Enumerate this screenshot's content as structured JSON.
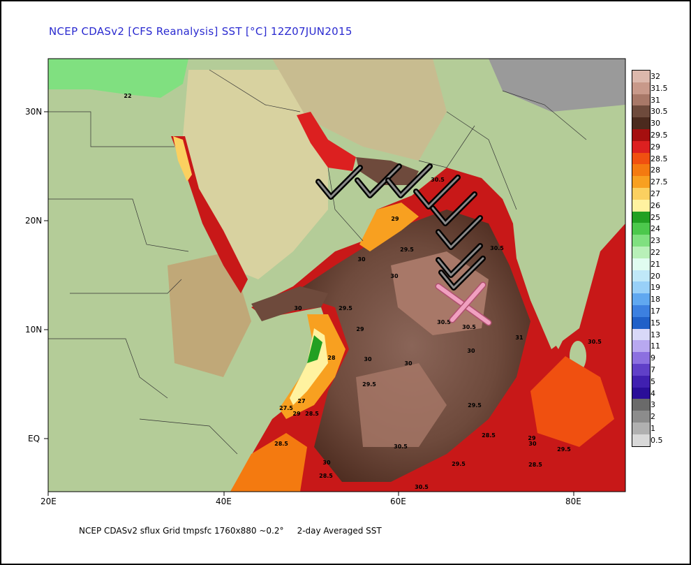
{
  "title": "NCEP CDASv2 [CFS Reanalysis] SST [°C] 12Z07JUN2015",
  "footer": "NCEP CDASv2 sflux Grid tmpsfc 1760x880 ~0.2°     2-day Averaged SST",
  "axes": {
    "x_ticks": [
      "20E",
      "40E",
      "60E",
      "80E"
    ],
    "y_ticks": [
      "30N",
      "20N",
      "10N",
      "EQ"
    ]
  },
  "legend": {
    "labels": [
      "32",
      "31.5",
      "31",
      "30.5",
      "30",
      "29.5",
      "29",
      "28.5",
      "28",
      "27.5",
      "27",
      "26",
      "25",
      "24",
      "23",
      "22",
      "21",
      "20",
      "19",
      "18",
      "17",
      "15",
      "13",
      "11",
      "9",
      "7",
      "5",
      "4",
      "3",
      "2",
      "1",
      "0.5"
    ],
    "colors": [
      "#dcb8ac",
      "#c8998a",
      "#a87868",
      "#6e4a3c",
      "#4b2a1e",
      "#a50f0f",
      "#dc2020",
      "#f05010",
      "#f47a10",
      "#f8a020",
      "#fbd060",
      "#fff2a0",
      "#22a022",
      "#4cc84c",
      "#80e080",
      "#b8f0b8",
      "#e0fcf0",
      "#c0e8f8",
      "#98d0f8",
      "#60a8f0",
      "#3c80e0",
      "#2060c8",
      "#d8d8f8",
      "#b8a8f0",
      "#8c70e0",
      "#6040c8",
      "#4020b0",
      "#2a0e98",
      "#6a6a6a",
      "#8c8c8c",
      "#b0b0b0",
      "#d8d8d8"
    ]
  },
  "map_values": [
    "22",
    "30",
    "29",
    "29.5",
    "30",
    "30.5",
    "30.5",
    "30",
    "29.5",
    "29",
    "28",
    "30",
    "30.5",
    "30.5",
    "30",
    "27",
    "27.5",
    "29",
    "28.5",
    "28.5",
    "30",
    "28.5",
    "30.5",
    "30",
    "29.5",
    "29.5",
    "28.5",
    "29",
    "30",
    "29.5",
    "28.5",
    "29.5",
    "30.5",
    "31",
    "30.5"
  ],
  "annotations": {
    "checkmark_count": 8,
    "x_mark_color": "#f0a0c0"
  }
}
